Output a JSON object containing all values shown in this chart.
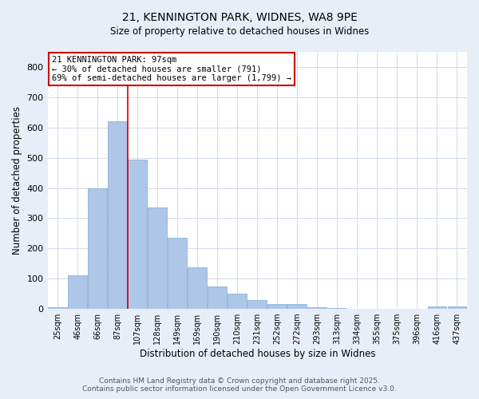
{
  "title1": "21, KENNINGTON PARK, WIDNES, WA8 9PE",
  "title2": "Size of property relative to detached houses in Widnes",
  "xlabel": "Distribution of detached houses by size in Widnes",
  "ylabel": "Number of detached properties",
  "categories": [
    "25sqm",
    "46sqm",
    "66sqm",
    "87sqm",
    "107sqm",
    "128sqm",
    "149sqm",
    "169sqm",
    "190sqm",
    "210sqm",
    "231sqm",
    "252sqm",
    "272sqm",
    "293sqm",
    "313sqm",
    "334sqm",
    "355sqm",
    "375sqm",
    "396sqm",
    "416sqm",
    "437sqm"
  ],
  "values": [
    5,
    110,
    400,
    620,
    495,
    335,
    235,
    138,
    75,
    50,
    28,
    15,
    17,
    5,
    3,
    0,
    0,
    0,
    0,
    7,
    8
  ],
  "bar_color": "#aec6e8",
  "bar_edge_color": "#8ab4d8",
  "vline_x_idx": 3,
  "vline_color": "#cc0000",
  "annotation_text": "21 KENNINGTON PARK: 97sqm\n← 30% of detached houses are smaller (791)\n69% of semi-detached houses are larger (1,799) →",
  "annotation_edge_color": "#cc0000",
  "ylim": [
    0,
    850
  ],
  "yticks": [
    0,
    100,
    200,
    300,
    400,
    500,
    600,
    700,
    800
  ],
  "footer1": "Contains HM Land Registry data © Crown copyright and database right 2025.",
  "footer2": "Contains public sector information licensed under the Open Government Licence v3.0.",
  "bg_color": "#e8eef8",
  "plot_bg_color": "#ffffff"
}
